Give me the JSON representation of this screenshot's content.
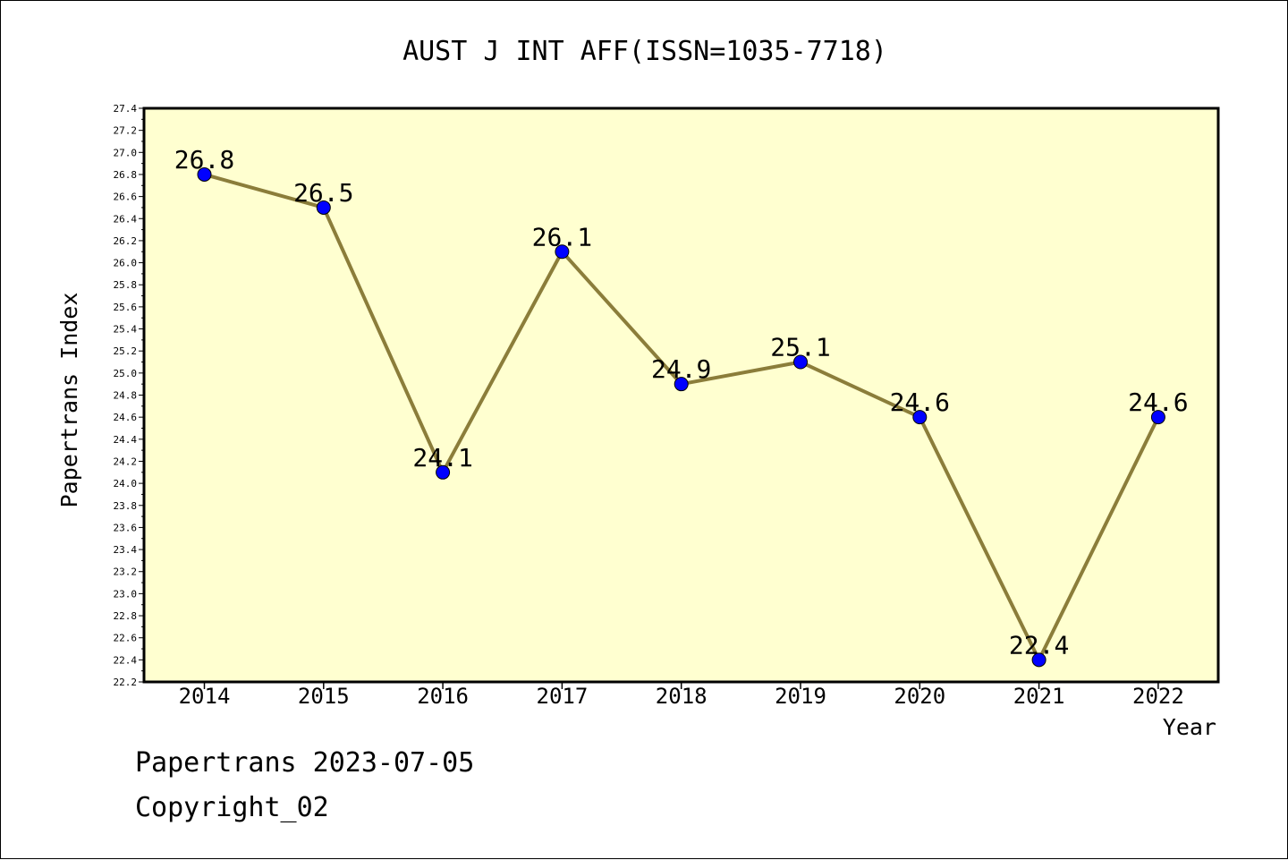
{
  "chart_data": {
    "type": "line",
    "title": "AUST J INT AFF(ISSN=1035-7718)",
    "xlabel": "Year",
    "ylabel": "Papertrans Index",
    "categories": [
      "2014",
      "2015",
      "2016",
      "2017",
      "2018",
      "2019",
      "2020",
      "2021",
      "2022"
    ],
    "series": [
      {
        "values": [
          26.8,
          26.5,
          24.1,
          26.1,
          24.9,
          25.1,
          24.6,
          22.4,
          24.6
        ]
      }
    ],
    "data_labels": [
      "26.8",
      "26.5",
      "24.1",
      "26.1",
      "24.9",
      "25.1",
      "24.6",
      "22.4",
      "24.6"
    ],
    "ylim": [
      22.2,
      27.4
    ],
    "yticks": [
      "22.2",
      "22.4",
      "22.6",
      "22.8",
      "23.0",
      "23.2",
      "23.4",
      "23.6",
      "23.8",
      "24.0",
      "24.2",
      "24.4",
      "24.6",
      "24.8",
      "25.0",
      "25.2",
      "25.4",
      "25.6",
      "25.8",
      "26.0",
      "26.2",
      "26.4",
      "26.6",
      "26.8",
      "27.0",
      "27.2",
      "27.4"
    ],
    "grid": false,
    "legend": "none",
    "colors": {
      "plot_background": "#ffffd0",
      "line": "#8b7d3a",
      "marker": "#0000ff",
      "axis": "#000000"
    }
  },
  "footer": {
    "line1": "Papertrans 2023-07-05",
    "line2": "Copyright_02"
  }
}
